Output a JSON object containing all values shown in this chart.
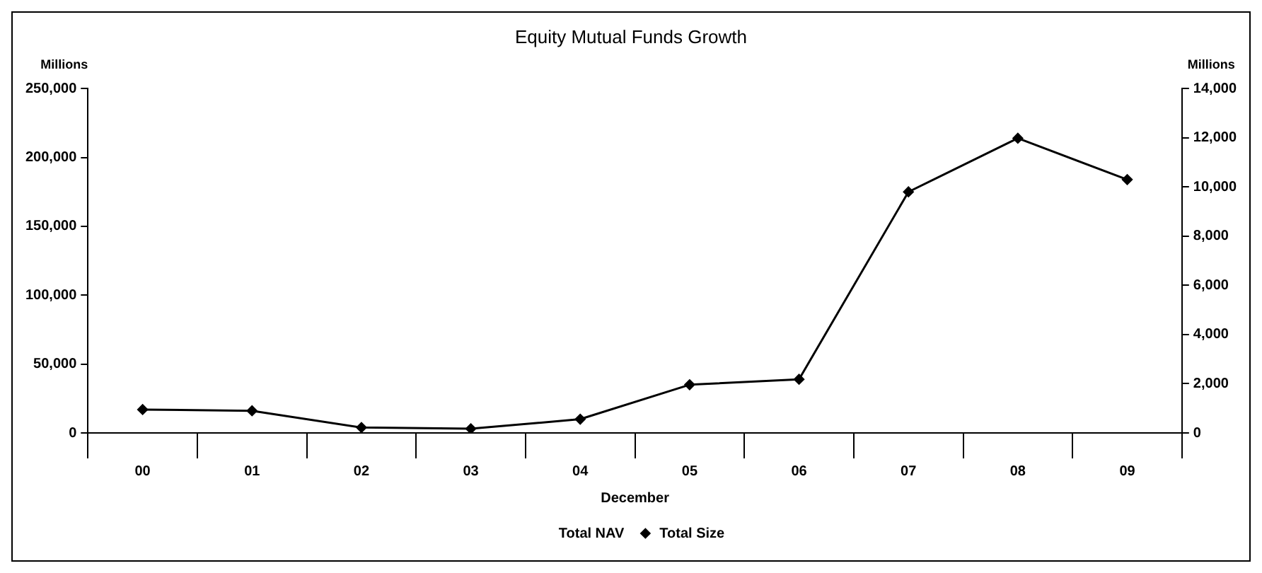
{
  "chart_data": {
    "type": "line",
    "title": "Equity Mutual Funds Growth",
    "xlabel": "December",
    "ylabel": "Millions",
    "y2label": "Millions",
    "categories": [
      "00",
      "01",
      "02",
      "03",
      "04",
      "05",
      "06",
      "07",
      "08",
      "09"
    ],
    "series": [
      {
        "name": "Total NAV",
        "type": "bar",
        "axis": "y",
        "values": [
          null,
          null,
          null,
          null,
          null,
          null,
          null,
          null,
          null,
          null
        ]
      },
      {
        "name": "Total Size",
        "axis": "y2",
        "color": "#000000",
        "values": [
          950,
          900,
          220,
          170,
          560,
          1960,
          2180,
          9800,
          11980,
          10300
        ]
      }
    ],
    "ylim": [
      0,
      250000
    ],
    "yticks": [
      {
        "value": 0,
        "label": "0"
      },
      {
        "value": 50000,
        "label": "50,000"
      },
      {
        "value": 100000,
        "label": "100,000"
      },
      {
        "value": 150000,
        "label": "150,000"
      },
      {
        "value": 200000,
        "label": "200,000"
      },
      {
        "value": 250000,
        "label": "250,000"
      }
    ],
    "y2lim": [
      0,
      14000
    ],
    "y2ticks": [
      {
        "value": 0,
        "label": "0"
      },
      {
        "value": 2000,
        "label": "2,000"
      },
      {
        "value": 4000,
        "label": "4,000"
      },
      {
        "value": 6000,
        "label": "6,000"
      },
      {
        "value": 8000,
        "label": "8,000"
      },
      {
        "value": 10000,
        "label": "10,000"
      },
      {
        "value": 12000,
        "label": "12,000"
      },
      {
        "value": 14000,
        "label": "14,000"
      }
    ],
    "grid": false,
    "legend": "bottom",
    "marker": "diamond",
    "line_style": "solid"
  }
}
